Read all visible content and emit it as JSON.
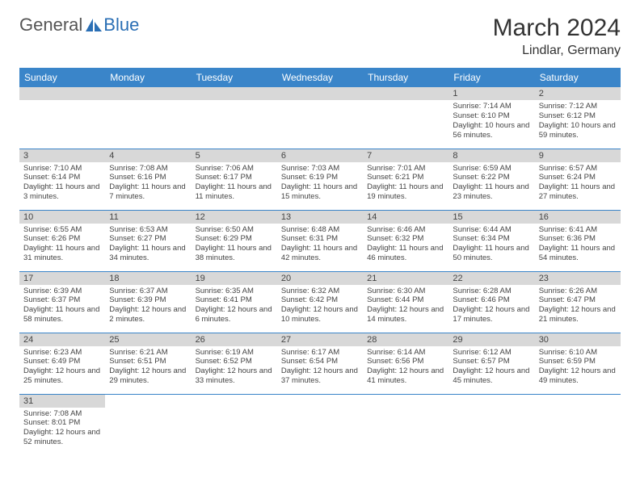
{
  "logo": {
    "text1": "General",
    "text2": "Blue"
  },
  "title": "March 2024",
  "location": "Lindlar, Germany",
  "weekdays": [
    "Sunday",
    "Monday",
    "Tuesday",
    "Wednesday",
    "Thursday",
    "Friday",
    "Saturday"
  ],
  "colors": {
    "header_bg": "#3a85c9",
    "header_text": "#ffffff",
    "daynum_bg": "#d8d8d8",
    "border": "#3a85c9",
    "logo_blue": "#2a6fb5"
  },
  "weeks": [
    [
      null,
      null,
      null,
      null,
      null,
      {
        "n": "1",
        "sr": "Sunrise: 7:14 AM",
        "ss": "Sunset: 6:10 PM",
        "dl": "Daylight: 10 hours and 56 minutes."
      },
      {
        "n": "2",
        "sr": "Sunrise: 7:12 AM",
        "ss": "Sunset: 6:12 PM",
        "dl": "Daylight: 10 hours and 59 minutes."
      }
    ],
    [
      {
        "n": "3",
        "sr": "Sunrise: 7:10 AM",
        "ss": "Sunset: 6:14 PM",
        "dl": "Daylight: 11 hours and 3 minutes."
      },
      {
        "n": "4",
        "sr": "Sunrise: 7:08 AM",
        "ss": "Sunset: 6:16 PM",
        "dl": "Daylight: 11 hours and 7 minutes."
      },
      {
        "n": "5",
        "sr": "Sunrise: 7:06 AM",
        "ss": "Sunset: 6:17 PM",
        "dl": "Daylight: 11 hours and 11 minutes."
      },
      {
        "n": "6",
        "sr": "Sunrise: 7:03 AM",
        "ss": "Sunset: 6:19 PM",
        "dl": "Daylight: 11 hours and 15 minutes."
      },
      {
        "n": "7",
        "sr": "Sunrise: 7:01 AM",
        "ss": "Sunset: 6:21 PM",
        "dl": "Daylight: 11 hours and 19 minutes."
      },
      {
        "n": "8",
        "sr": "Sunrise: 6:59 AM",
        "ss": "Sunset: 6:22 PM",
        "dl": "Daylight: 11 hours and 23 minutes."
      },
      {
        "n": "9",
        "sr": "Sunrise: 6:57 AM",
        "ss": "Sunset: 6:24 PM",
        "dl": "Daylight: 11 hours and 27 minutes."
      }
    ],
    [
      {
        "n": "10",
        "sr": "Sunrise: 6:55 AM",
        "ss": "Sunset: 6:26 PM",
        "dl": "Daylight: 11 hours and 31 minutes."
      },
      {
        "n": "11",
        "sr": "Sunrise: 6:53 AM",
        "ss": "Sunset: 6:27 PM",
        "dl": "Daylight: 11 hours and 34 minutes."
      },
      {
        "n": "12",
        "sr": "Sunrise: 6:50 AM",
        "ss": "Sunset: 6:29 PM",
        "dl": "Daylight: 11 hours and 38 minutes."
      },
      {
        "n": "13",
        "sr": "Sunrise: 6:48 AM",
        "ss": "Sunset: 6:31 PM",
        "dl": "Daylight: 11 hours and 42 minutes."
      },
      {
        "n": "14",
        "sr": "Sunrise: 6:46 AM",
        "ss": "Sunset: 6:32 PM",
        "dl": "Daylight: 11 hours and 46 minutes."
      },
      {
        "n": "15",
        "sr": "Sunrise: 6:44 AM",
        "ss": "Sunset: 6:34 PM",
        "dl": "Daylight: 11 hours and 50 minutes."
      },
      {
        "n": "16",
        "sr": "Sunrise: 6:41 AM",
        "ss": "Sunset: 6:36 PM",
        "dl": "Daylight: 11 hours and 54 minutes."
      }
    ],
    [
      {
        "n": "17",
        "sr": "Sunrise: 6:39 AM",
        "ss": "Sunset: 6:37 PM",
        "dl": "Daylight: 11 hours and 58 minutes."
      },
      {
        "n": "18",
        "sr": "Sunrise: 6:37 AM",
        "ss": "Sunset: 6:39 PM",
        "dl": "Daylight: 12 hours and 2 minutes."
      },
      {
        "n": "19",
        "sr": "Sunrise: 6:35 AM",
        "ss": "Sunset: 6:41 PM",
        "dl": "Daylight: 12 hours and 6 minutes."
      },
      {
        "n": "20",
        "sr": "Sunrise: 6:32 AM",
        "ss": "Sunset: 6:42 PM",
        "dl": "Daylight: 12 hours and 10 minutes."
      },
      {
        "n": "21",
        "sr": "Sunrise: 6:30 AM",
        "ss": "Sunset: 6:44 PM",
        "dl": "Daylight: 12 hours and 14 minutes."
      },
      {
        "n": "22",
        "sr": "Sunrise: 6:28 AM",
        "ss": "Sunset: 6:46 PM",
        "dl": "Daylight: 12 hours and 17 minutes."
      },
      {
        "n": "23",
        "sr": "Sunrise: 6:26 AM",
        "ss": "Sunset: 6:47 PM",
        "dl": "Daylight: 12 hours and 21 minutes."
      }
    ],
    [
      {
        "n": "24",
        "sr": "Sunrise: 6:23 AM",
        "ss": "Sunset: 6:49 PM",
        "dl": "Daylight: 12 hours and 25 minutes."
      },
      {
        "n": "25",
        "sr": "Sunrise: 6:21 AM",
        "ss": "Sunset: 6:51 PM",
        "dl": "Daylight: 12 hours and 29 minutes."
      },
      {
        "n": "26",
        "sr": "Sunrise: 6:19 AM",
        "ss": "Sunset: 6:52 PM",
        "dl": "Daylight: 12 hours and 33 minutes."
      },
      {
        "n": "27",
        "sr": "Sunrise: 6:17 AM",
        "ss": "Sunset: 6:54 PM",
        "dl": "Daylight: 12 hours and 37 minutes."
      },
      {
        "n": "28",
        "sr": "Sunrise: 6:14 AM",
        "ss": "Sunset: 6:56 PM",
        "dl": "Daylight: 12 hours and 41 minutes."
      },
      {
        "n": "29",
        "sr": "Sunrise: 6:12 AM",
        "ss": "Sunset: 6:57 PM",
        "dl": "Daylight: 12 hours and 45 minutes."
      },
      {
        "n": "30",
        "sr": "Sunrise: 6:10 AM",
        "ss": "Sunset: 6:59 PM",
        "dl": "Daylight: 12 hours and 49 minutes."
      }
    ],
    [
      {
        "n": "31",
        "sr": "Sunrise: 7:08 AM",
        "ss": "Sunset: 8:01 PM",
        "dl": "Daylight: 12 hours and 52 minutes."
      },
      null,
      null,
      null,
      null,
      null,
      null
    ]
  ]
}
